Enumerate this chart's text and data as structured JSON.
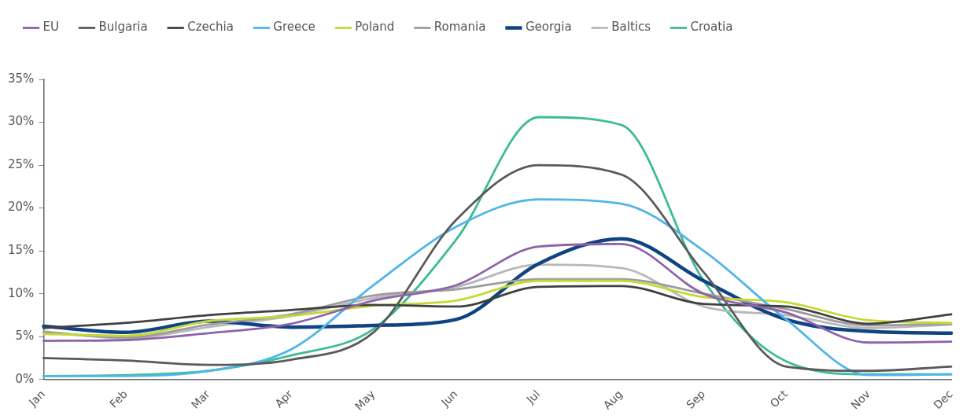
{
  "chart_data": {
    "type": "line",
    "categories": [
      "Jan",
      "Feb",
      "Mar",
      "Apr",
      "May",
      "Jun",
      "Jul",
      "Aug",
      "Sep",
      "Oct",
      "Nov",
      "Dec"
    ],
    "ylim": [
      0,
      35
    ],
    "yticks": [
      {
        "value": 0,
        "label": "0%"
      },
      {
        "value": 5,
        "label": "5%"
      },
      {
        "value": 10,
        "label": "10%"
      },
      {
        "value": 15,
        "label": "15%"
      },
      {
        "value": 20,
        "label": "20%"
      },
      {
        "value": 25,
        "label": "25%"
      },
      {
        "value": 30,
        "label": "30%"
      },
      {
        "value": 35,
        "label": "35%"
      }
    ],
    "legend": "top",
    "grid": false,
    "marker": "none",
    "line_style": "solid",
    "series": [
      {
        "name": "EU",
        "color": "#8e63aa",
        "values": [
          4.5,
          4.6,
          5.4,
          6.5,
          9.2,
          11.0,
          15.5,
          15.8,
          10.0,
          7.8,
          4.3,
          4.4
        ]
      },
      {
        "name": "Bulgaria",
        "color": "#5a5a5a",
        "values": [
          2.5,
          2.2,
          1.7,
          2.3,
          5.5,
          18.6,
          25.0,
          23.9,
          12.5,
          1.5,
          1.0,
          1.5
        ]
      },
      {
        "name": "Czechia",
        "color": "#404040",
        "values": [
          6.0,
          6.6,
          7.5,
          8.1,
          8.7,
          8.5,
          10.8,
          10.9,
          8.8,
          8.5,
          6.5,
          7.6
        ]
      },
      {
        "name": "Greece",
        "color": "#4fb6e8",
        "values": [
          0.4,
          0.4,
          1.0,
          3.5,
          11.0,
          17.8,
          21.0,
          20.5,
          15.0,
          7.0,
          0.5,
          0.6
        ]
      },
      {
        "name": "Poland",
        "color": "#c5d934",
        "values": [
          5.3,
          5.1,
          6.8,
          7.4,
          8.6,
          9.2,
          11.5,
          11.5,
          9.6,
          9.0,
          6.9,
          6.6
        ]
      },
      {
        "name": "Romania",
        "color": "#9c9c9e",
        "values": [
          5.5,
          4.9,
          6.4,
          7.6,
          9.8,
          10.5,
          11.7,
          11.7,
          10.0,
          8.2,
          6.3,
          6.5
        ]
      },
      {
        "name": "Georgia",
        "color": "#0f4381",
        "values": [
          6.2,
          5.5,
          6.8,
          6.1,
          6.3,
          7.0,
          13.5,
          16.4,
          11.5,
          7.0,
          5.6,
          5.4
        ]
      },
      {
        "name": "Baltics",
        "color": "#b8b8ba",
        "values": [
          5.6,
          4.8,
          6.1,
          7.4,
          9.5,
          10.8,
          13.4,
          13.0,
          8.5,
          7.5,
          6.0,
          6.4
        ]
      },
      {
        "name": "Croatia",
        "color": "#3cbb94",
        "values": [
          0.4,
          0.5,
          1.0,
          2.8,
          5.9,
          16.3,
          30.6,
          29.7,
          11.5,
          2.1,
          0.6,
          0.6
        ]
      }
    ]
  }
}
